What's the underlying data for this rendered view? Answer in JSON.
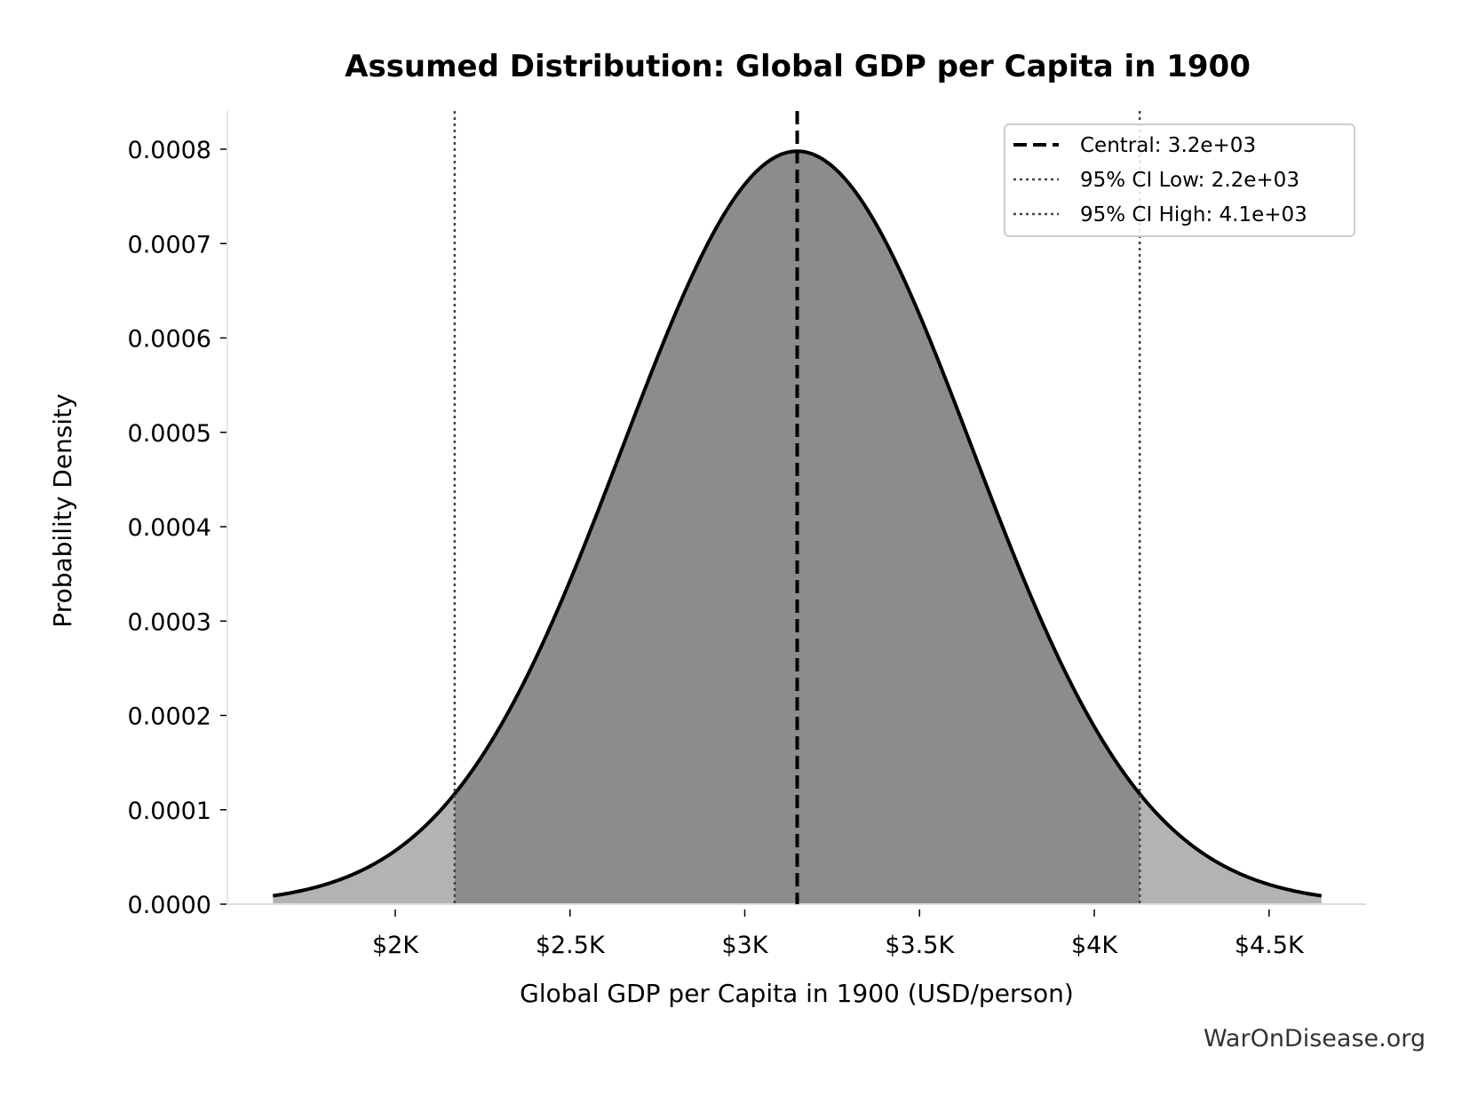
{
  "chart_data": {
    "type": "area",
    "title": "Assumed Distribution: Global GDP per Capita in 1900",
    "xlabel": "Global GDP per Capita in 1900 (USD/person)",
    "ylabel": "Probability Density",
    "xlim": [
      1500,
      4750
    ],
    "ylim": [
      0,
      0.00084
    ],
    "distribution": {
      "kind": "normal",
      "mean": 3150,
      "sd": 500,
      "x_start": 1650,
      "x_end": 4650
    },
    "x_ticks": [
      {
        "value": 2000,
        "label": "$2K"
      },
      {
        "value": 2500,
        "label": "$2.5K"
      },
      {
        "value": 3000,
        "label": "$3K"
      },
      {
        "value": 3500,
        "label": "$3.5K"
      },
      {
        "value": 4000,
        "label": "$4K"
      },
      {
        "value": 4500,
        "label": "$4.5K"
      }
    ],
    "y_ticks": [
      {
        "value": 0,
        "label": "0.0000"
      },
      {
        "value": 0.0001,
        "label": "0.0001"
      },
      {
        "value": 0.0002,
        "label": "0.0002"
      },
      {
        "value": 0.0003,
        "label": "0.0003"
      },
      {
        "value": 0.0004,
        "label": "0.0004"
      },
      {
        "value": 0.0005,
        "label": "0.0005"
      },
      {
        "value": 0.0006,
        "label": "0.0006"
      },
      {
        "value": 0.0007,
        "label": "0.0007"
      },
      {
        "value": 0.0008,
        "label": "0.0008"
      }
    ],
    "vlines": [
      {
        "name": "Central: 3.2e+03",
        "value": 3150,
        "style": "dashed",
        "color": "#000000"
      },
      {
        "name": "95% CI Low: 2.2e+03",
        "value": 2170,
        "style": "dotted",
        "color": "#444444"
      },
      {
        "name": "95% CI High: 4.1e+03",
        "value": 4130,
        "style": "dotted",
        "color": "#444444"
      }
    ],
    "colors": {
      "ci_fill": "#8c8c8c",
      "tail_fill": "#b3b3b3",
      "curve": "#000000"
    },
    "legend_position": "top-right",
    "grid": false
  },
  "watermark": "WarOnDisease.org"
}
